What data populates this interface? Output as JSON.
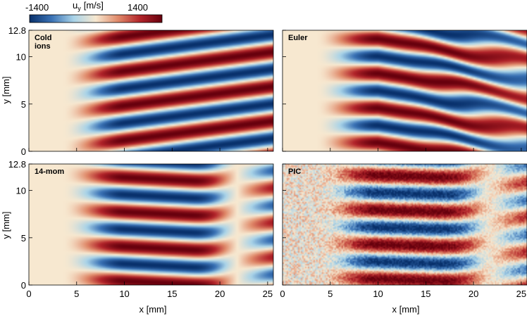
{
  "colorbar": {
    "label_base": "u",
    "label_sub": "y",
    "label_unit": "[m/s]",
    "min_label": "-1400",
    "max_label": "1400",
    "range": [
      -1400,
      1400
    ],
    "colors": [
      "#08306b",
      "#3a72b5",
      "#a9d3e8",
      "#f7e8d0",
      "#e08a6a",
      "#b2242a",
      "#67000d"
    ]
  },
  "chart_data": {
    "type": "heatmap",
    "xlabel": "x [mm]",
    "ylabel": "y [mm]",
    "xlim": [
      0,
      25.6
    ],
    "ylim": [
      0,
      12.8
    ],
    "x_ticks": [
      "0",
      "5",
      "10",
      "15",
      "20",
      "25"
    ],
    "y_ticks": [
      "0",
      "5",
      "10",
      "12.8"
    ],
    "panels": [
      {
        "label_lines": [
          "Cold",
          "ions"
        ],
        "model": "cold"
      },
      {
        "label_lines": [
          "Euler"
        ],
        "model": "euler"
      },
      {
        "label_lines": [
          "14-mom"
        ],
        "model": "mom14"
      },
      {
        "label_lines": [
          "PIC"
        ],
        "model": "pic"
      }
    ]
  }
}
